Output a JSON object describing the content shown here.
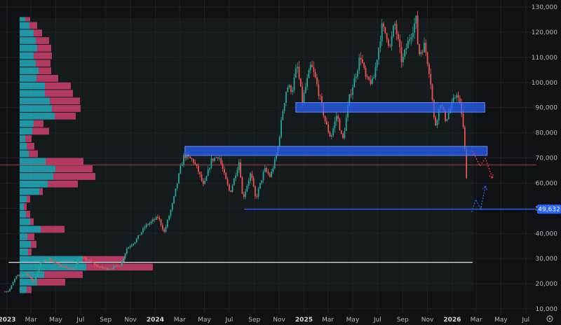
{
  "chart_data": {
    "type": "candlestick",
    "title": "",
    "y_axis": {
      "ticks": [
        10000,
        20000,
        30000,
        40000,
        50000,
        60000,
        70000,
        80000,
        90000,
        100000,
        110000,
        120000,
        130000
      ],
      "tick_labels": [
        "10,000",
        "20,000",
        "30,000",
        "40,000",
        "50,000",
        "60,000",
        "70,000",
        "80,000",
        "90,000",
        "100,000",
        "110,000",
        "120,000",
        "130,000"
      ],
      "range": [
        10000,
        130000
      ],
      "position": "right"
    },
    "x_axis": {
      "range": [
        "2023-01-01",
        "2026-07-20"
      ],
      "ticks": [
        {
          "date": "2023-01-01",
          "label": "2023",
          "year": true
        },
        {
          "date": "2023-03-01",
          "label": "Mar",
          "year": false
        },
        {
          "date": "2023-05-01",
          "label": "May",
          "year": false
        },
        {
          "date": "2023-07-01",
          "label": "Jul",
          "year": false
        },
        {
          "date": "2023-09-01",
          "label": "Sep",
          "year": false
        },
        {
          "date": "2023-11-01",
          "label": "Nov",
          "year": false
        },
        {
          "date": "2024-01-01",
          "label": "2024",
          "year": true
        },
        {
          "date": "2024-03-01",
          "label": "Mar",
          "year": false
        },
        {
          "date": "2024-05-01",
          "label": "May",
          "year": false
        },
        {
          "date": "2024-07-01",
          "label": "Jul",
          "year": false
        },
        {
          "date": "2024-09-01",
          "label": "Sep",
          "year": false
        },
        {
          "date": "2024-11-01",
          "label": "Nov",
          "year": false
        },
        {
          "date": "2025-01-01",
          "label": "2025",
          "year": true
        },
        {
          "date": "2025-03-01",
          "label": "Mar",
          "year": false
        },
        {
          "date": "2025-05-01",
          "label": "May",
          "year": false
        },
        {
          "date": "2025-07-01",
          "label": "Jul",
          "year": false
        },
        {
          "date": "2025-09-01",
          "label": "Sep",
          "year": false
        },
        {
          "date": "2025-11-01",
          "label": "Nov",
          "year": false
        },
        {
          "date": "2026-01-01",
          "label": "2026",
          "year": true
        },
        {
          "date": "2026-03-01",
          "label": "Mar",
          "year": false
        },
        {
          "date": "2026-05-01",
          "label": "May",
          "year": false
        },
        {
          "date": "2026-07-01",
          "label": "Jul",
          "year": false
        }
      ]
    },
    "price_path": [
      [
        "2022-12-25",
        16800
      ],
      [
        "2023-01-08",
        17200
      ],
      [
        "2023-01-25",
        22800
      ],
      [
        "2023-02-20",
        24300
      ],
      [
        "2023-03-10",
        20300
      ],
      [
        "2023-03-25",
        28200
      ],
      [
        "2023-04-15",
        30000
      ],
      [
        "2023-05-10",
        27500
      ],
      [
        "2023-06-15",
        25500
      ],
      [
        "2023-06-30",
        30500
      ],
      [
        "2023-07-20",
        29500
      ],
      [
        "2023-08-18",
        26500
      ],
      [
        "2023-09-10",
        25900
      ],
      [
        "2023-10-10",
        27500
      ],
      [
        "2023-10-25",
        34000
      ],
      [
        "2023-11-15",
        37000
      ],
      [
        "2023-12-10",
        43000
      ],
      [
        "2024-01-10",
        46500
      ],
      [
        "2024-01-25",
        40500
      ],
      [
        "2024-02-15",
        52000
      ],
      [
        "2024-03-05",
        66000
      ],
      [
        "2024-03-14",
        71000
      ],
      [
        "2024-04-05",
        69000
      ],
      [
        "2024-04-20",
        64000
      ],
      [
        "2024-05-01",
        58500
      ],
      [
        "2024-05-20",
        69000
      ],
      [
        "2024-06-07",
        71000
      ],
      [
        "2024-06-25",
        61000
      ],
      [
        "2024-07-05",
        56000
      ],
      [
        "2024-07-28",
        69000
      ],
      [
        "2024-08-05",
        53500
      ],
      [
        "2024-08-25",
        64000
      ],
      [
        "2024-09-06",
        53500
      ],
      [
        "2024-09-28",
        65500
      ],
      [
        "2024-10-12",
        62500
      ],
      [
        "2024-10-29",
        72000
      ],
      [
        "2024-11-12",
        89000
      ],
      [
        "2024-11-22",
        98500
      ],
      [
        "2024-12-05",
        97000
      ],
      [
        "2024-12-17",
        107000
      ],
      [
        "2024-12-30",
        92500
      ],
      [
        "2025-01-20",
        107000
      ],
      [
        "2025-02-01",
        101000
      ],
      [
        "2025-02-25",
        84000
      ],
      [
        "2025-03-10",
        78000
      ],
      [
        "2025-03-25",
        87500
      ],
      [
        "2025-04-08",
        76500
      ],
      [
        "2025-04-25",
        94000
      ],
      [
        "2025-05-12",
        104000
      ],
      [
        "2025-05-22",
        111000
      ],
      [
        "2025-06-05",
        101000
      ],
      [
        "2025-06-22",
        100000
      ],
      [
        "2025-07-14",
        122000
      ],
      [
        "2025-07-28",
        118000
      ],
      [
        "2025-08-02",
        113000
      ],
      [
        "2025-08-14",
        124000
      ],
      [
        "2025-09-01",
        108000
      ],
      [
        "2025-09-18",
        117000
      ],
      [
        "2025-10-06",
        125000
      ],
      [
        "2025-10-12",
        111000
      ],
      [
        "2025-10-27",
        115000
      ],
      [
        "2025-11-10",
        102000
      ],
      [
        "2025-11-21",
        82000
      ],
      [
        "2025-12-05",
        92000
      ],
      [
        "2025-12-18",
        85000
      ],
      [
        "2026-01-14",
        96000
      ],
      [
        "2026-01-26",
        88000
      ],
      [
        "2026-02-02",
        77000
      ],
      [
        "2026-02-06",
        61000
      ],
      [
        "2026-02-10",
        68500
      ]
    ],
    "volume_profile": [
      {
        "price_low": 16000,
        "price_high": 19000,
        "up": 10,
        "total": 17
      },
      {
        "price_low": 19000,
        "price_high": 22000,
        "up": 25,
        "total": 65
      },
      {
        "price_low": 22000,
        "price_high": 25000,
        "up": 35,
        "total": 90
      },
      {
        "price_low": 25000,
        "price_high": 28000,
        "up": 95,
        "total": 190
      },
      {
        "price_low": 28000,
        "price_high": 31000,
        "up": 90,
        "total": 150
      },
      {
        "price_low": 31000,
        "price_high": 34000,
        "up": 12,
        "total": 17
      },
      {
        "price_low": 34000,
        "price_high": 37000,
        "up": 16,
        "total": 24
      },
      {
        "price_low": 37000,
        "price_high": 40000,
        "up": 11,
        "total": 21
      },
      {
        "price_low": 40000,
        "price_high": 43000,
        "up": 30,
        "total": 64
      },
      {
        "price_low": 43000,
        "price_high": 46000,
        "up": 15,
        "total": 20
      },
      {
        "price_low": 46000,
        "price_high": 49000,
        "up": 9,
        "total": 15
      },
      {
        "price_low": 49000,
        "price_high": 52000,
        "up": 6,
        "total": 10
      },
      {
        "price_low": 52000,
        "price_high": 55000,
        "up": 10,
        "total": 15
      },
      {
        "price_low": 55000,
        "price_high": 58000,
        "up": 28,
        "total": 33
      },
      {
        "price_low": 58000,
        "price_high": 61000,
        "up": 40,
        "total": 83
      },
      {
        "price_low": 61000,
        "price_high": 64000,
        "up": 48,
        "total": 108
      },
      {
        "price_low": 64000,
        "price_high": 67000,
        "up": 51,
        "total": 104
      },
      {
        "price_low": 67000,
        "price_high": 70000,
        "up": 37,
        "total": 91
      },
      {
        "price_low": 70000,
        "price_high": 73000,
        "up": 13,
        "total": 26
      },
      {
        "price_low": 73000,
        "price_high": 76000,
        "up": 10,
        "total": 21
      },
      {
        "price_low": 76000,
        "price_high": 79000,
        "up": 8,
        "total": 17
      },
      {
        "price_low": 79000,
        "price_high": 82000,
        "up": 18,
        "total": 42
      },
      {
        "price_low": 82000,
        "price_high": 85000,
        "up": 20,
        "total": 34
      },
      {
        "price_low": 85000,
        "price_high": 88000,
        "up": 50,
        "total": 80
      },
      {
        "price_low": 88000,
        "price_high": 91000,
        "up": 46,
        "total": 87
      },
      {
        "price_low": 91000,
        "price_high": 94000,
        "up": 43,
        "total": 86
      },
      {
        "price_low": 94000,
        "price_high": 97000,
        "up": 36,
        "total": 76
      },
      {
        "price_low": 97000,
        "price_high": 100000,
        "up": 36,
        "total": 73
      },
      {
        "price_low": 100000,
        "price_high": 103000,
        "up": 24,
        "total": 55
      },
      {
        "price_low": 103000,
        "price_high": 106000,
        "up": 27,
        "total": 45
      },
      {
        "price_low": 106000,
        "price_high": 109000,
        "up": 23,
        "total": 44
      },
      {
        "price_low": 109000,
        "price_high": 112000,
        "up": 20,
        "total": 46
      },
      {
        "price_low": 112000,
        "price_high": 115000,
        "up": 25,
        "total": 45
      },
      {
        "price_low": 115000,
        "price_high": 118000,
        "up": 23,
        "total": 42
      },
      {
        "price_low": 118000,
        "price_high": 121000,
        "up": 20,
        "total": 32
      },
      {
        "price_low": 121000,
        "price_high": 124000,
        "up": 14,
        "total": 25
      },
      {
        "price_low": 124000,
        "price_high": 126000,
        "up": 8,
        "total": 15
      }
    ],
    "zones": [
      {
        "name": "resistance-zone-upper",
        "start": "2024-12-12",
        "end": "2026-03-22",
        "low": 88200,
        "high": 92000,
        "color": "#2962ff"
      },
      {
        "name": "resistance-zone-lower",
        "start": "2024-03-14",
        "end": "2026-03-28",
        "low": 71000,
        "high": 74600,
        "color": "#2962ff"
      }
    ],
    "levels": [
      {
        "name": "support-line",
        "price": 49632,
        "start": "2024-08-07",
        "label": "49,632",
        "color": "#2962ff"
      },
      {
        "name": "base-line",
        "price": 28500,
        "start": "2023-01-05",
        "end": "2026-02-20",
        "color": "#d1d4dc"
      },
      {
        "name": "current-price-line",
        "price": 67200,
        "color": "#b24a4a"
      }
    ],
    "projections": [
      {
        "name": "bearish-projection",
        "color": "#f23645",
        "points": [
          [
            "2026-02-20",
            72800
          ],
          [
            "2026-03-10",
            66800
          ],
          [
            "2026-03-24",
            69800
          ],
          [
            "2026-04-10",
            61800
          ]
        ]
      },
      {
        "name": "bullish-projection",
        "color": "#2962ff",
        "points": [
          [
            "2026-02-18",
            48500
          ],
          [
            "2026-02-28",
            53500
          ],
          [
            "2026-03-12",
            49800
          ],
          [
            "2026-03-24",
            59000
          ]
        ]
      }
    ],
    "colors": {
      "up": "#26a69a",
      "down": "#ef5350",
      "profile_up": "#26c6da",
      "profile_down": "#f0457a",
      "background": "#0f1114",
      "grid": "#1e222b"
    },
    "grid": true
  }
}
